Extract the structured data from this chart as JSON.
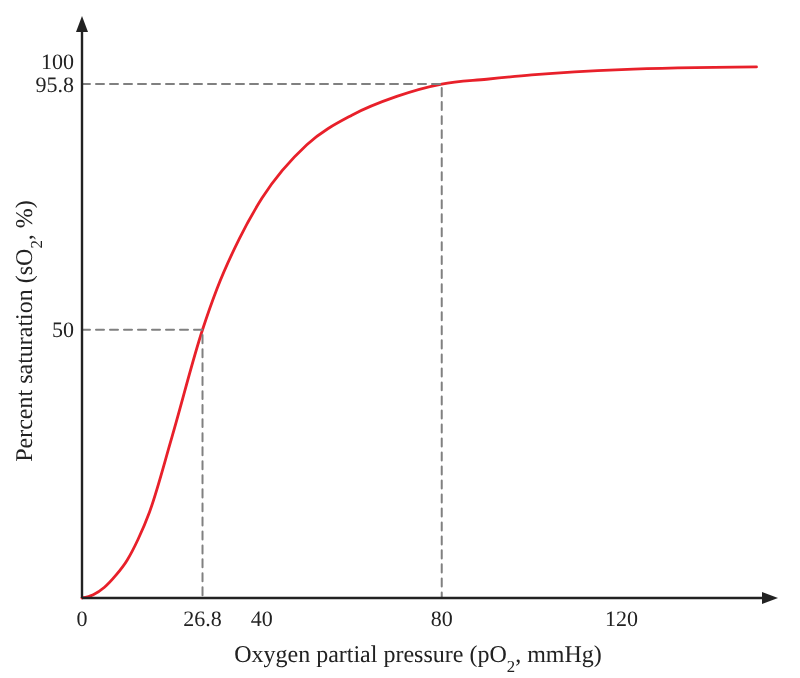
{
  "chart_data": {
    "type": "line",
    "xlabel": "Oxygen partial pressure (pO$_{2}$, mmHg)",
    "ylabel": "Percent saturation (sO$_{2}$, %)",
    "xlim": [
      0,
      153
    ],
    "ylim": [
      0,
      107
    ],
    "xticks": [
      {
        "value": 0,
        "label": "0"
      },
      26.8,
      40,
      80,
      120
    ],
    "yticks": [
      50,
      95.8,
      100
    ],
    "grid": false,
    "series": [
      {
        "color": "#e8202a",
        "line_style": "solid",
        "x": [
          0,
          2.5,
          5,
          7.5,
          10,
          12.5,
          15,
          20,
          26.8,
          30,
          35,
          40,
          50,
          60,
          70,
          80,
          90,
          100,
          120,
          150
        ],
        "values": [
          0,
          0.6,
          2,
          4.2,
          7,
          11,
          16,
          30,
          50,
          57.6,
          67,
          74.5,
          84.5,
          90,
          93.5,
          95.8,
          96.7,
          97.5,
          98.5,
          99
        ]
      },
      {
        "color": "#808080",
        "line_style": "dashed",
        "x": [
          0,
          26.8,
          26.8
        ],
        "values": [
          50,
          50,
          0
        ]
      },
      {
        "color": "#808080",
        "line_style": "dashed",
        "x": [
          0,
          80,
          80
        ],
        "values": [
          95.8,
          95.8,
          0
        ]
      }
    ]
  }
}
